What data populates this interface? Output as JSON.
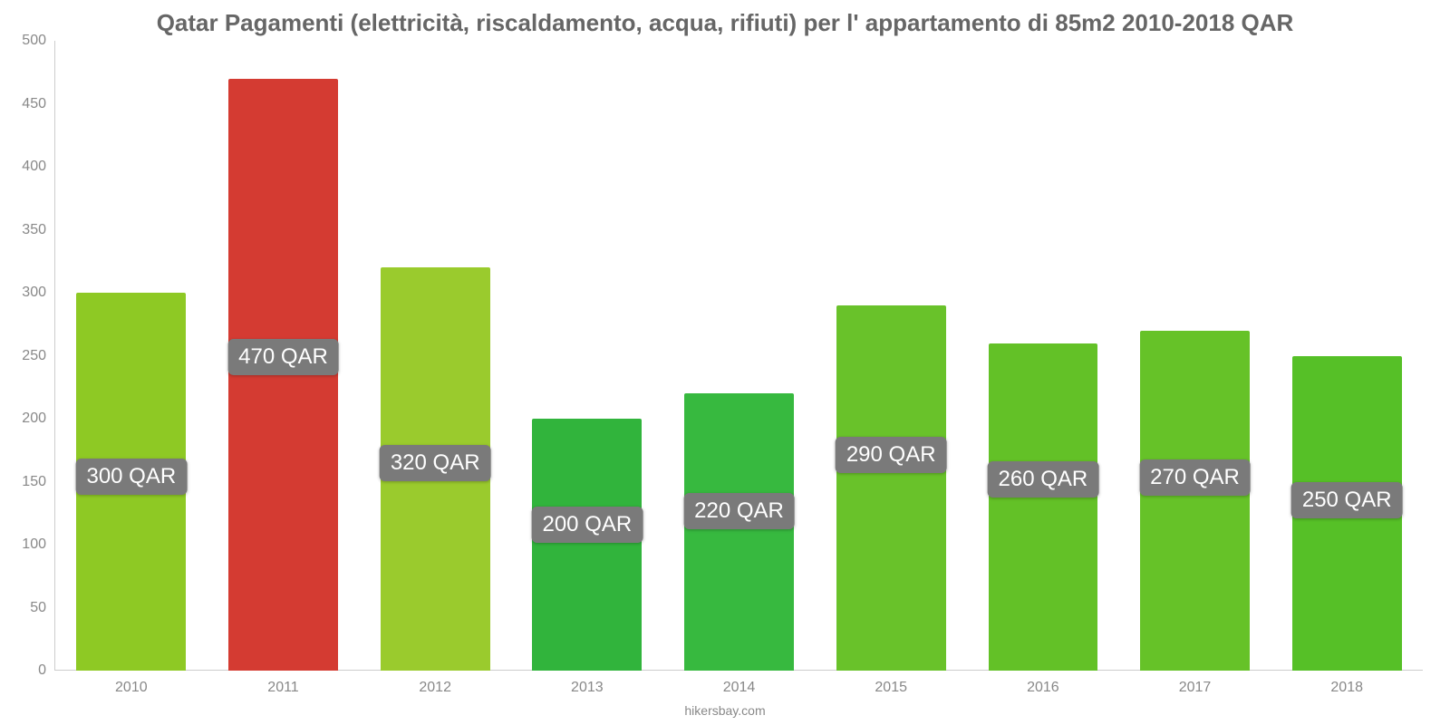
{
  "chart": {
    "type": "bar",
    "title": "Qatar Pagamenti (elettricità, riscaldamento, acqua, rifiuti) per l' appartamento di 85m2 2010-2018 QAR",
    "title_fontsize": 26,
    "title_color": "#666666",
    "source": "hikersbay.com",
    "source_fontsize": 14,
    "source_color": "#888888",
    "background_color": "#ffffff",
    "axis_color": "#cccccc",
    "ylim": [
      0,
      500
    ],
    "ytick_step": 50,
    "ytick_fontsize": 16,
    "ytick_color": "#888888",
    "yticks": [
      {
        "value": 0,
        "label": "0"
      },
      {
        "value": 50,
        "label": "50"
      },
      {
        "value": 100,
        "label": "100"
      },
      {
        "value": 150,
        "label": "150"
      },
      {
        "value": 200,
        "label": "200"
      },
      {
        "value": 250,
        "label": "250"
      },
      {
        "value": 300,
        "label": "300"
      },
      {
        "value": 350,
        "label": "350"
      },
      {
        "value": 400,
        "label": "400"
      },
      {
        "value": 450,
        "label": "450"
      },
      {
        "value": 500,
        "label": "500"
      }
    ],
    "xtick_fontsize": 16,
    "xtick_color": "#888888",
    "bar_width_ratio": 0.72,
    "badge_bg": "#7a7a7a",
    "badge_text_color": "#ffffff",
    "badge_fontsize": 24,
    "badge_padding": "6px 12px",
    "badge_radius": 6,
    "categories": [
      "2010",
      "2011",
      "2012",
      "2013",
      "2014",
      "2015",
      "2016",
      "2017",
      "2018"
    ],
    "series": [
      {
        "year": "2010",
        "value": 300,
        "label": "300 QAR",
        "color": "#8ec924",
        "badge_top_ratio": 0.44
      },
      {
        "year": "2011",
        "value": 470,
        "label": "470 QAR",
        "color": "#d43b32",
        "badge_top_ratio": 0.44
      },
      {
        "year": "2012",
        "value": 320,
        "label": "320 QAR",
        "color": "#9acb2d",
        "badge_top_ratio": 0.44
      },
      {
        "year": "2013",
        "value": 200,
        "label": "200 QAR",
        "color": "#31b43c",
        "badge_top_ratio": 0.35
      },
      {
        "year": "2014",
        "value": 220,
        "label": "220 QAR",
        "color": "#37b93f",
        "badge_top_ratio": 0.36
      },
      {
        "year": "2015",
        "value": 290,
        "label": "290 QAR",
        "color": "#69c22a",
        "badge_top_ratio": 0.36
      },
      {
        "year": "2016",
        "value": 260,
        "label": "260 QAR",
        "color": "#63c127",
        "badge_top_ratio": 0.36
      },
      {
        "year": "2017",
        "value": 270,
        "label": "270 QAR",
        "color": "#66c228",
        "badge_top_ratio": 0.38
      },
      {
        "year": "2018",
        "value": 250,
        "label": "250 QAR",
        "color": "#56c027",
        "badge_top_ratio": 0.4
      }
    ]
  }
}
